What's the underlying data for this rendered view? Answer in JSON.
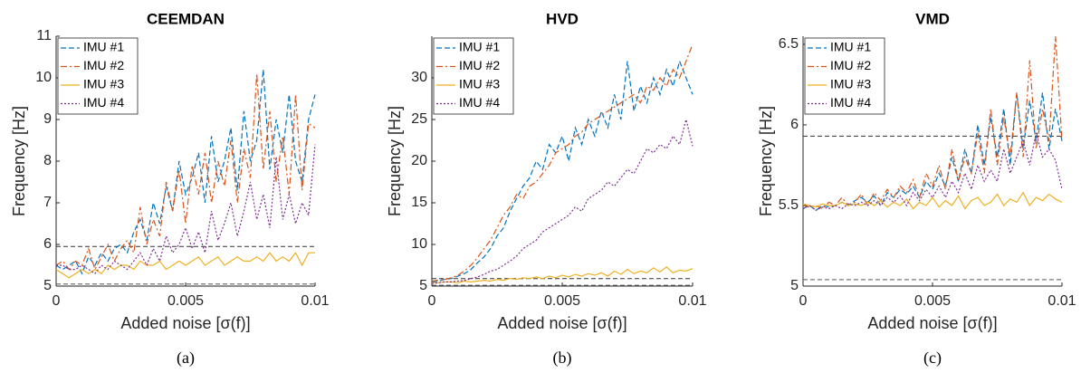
{
  "chart_data": [
    {
      "type": "line",
      "title": "CEEMDAN",
      "caption": "(a)",
      "xlabel": "Added noise [σ(f)]",
      "ylabel": "Frequency [Hz]",
      "xlim": [
        0,
        0.01
      ],
      "xticks": [
        0,
        0.005,
        0.01
      ],
      "ylim": [
        5,
        11
      ],
      "yticks": [
        5,
        6,
        7,
        8,
        9,
        10,
        11
      ],
      "hlines": [
        5.95,
        5.05
      ],
      "x": [
        0,
        0.00025,
        0.0005,
        0.00075,
        0.001,
        0.00125,
        0.0015,
        0.00175,
        0.002,
        0.00225,
        0.0025,
        0.00275,
        0.003,
        0.00325,
        0.0035,
        0.00375,
        0.004,
        0.00425,
        0.0045,
        0.00475,
        0.005,
        0.00525,
        0.0055,
        0.00575,
        0.006,
        0.00625,
        0.0065,
        0.00675,
        0.007,
        0.00725,
        0.0075,
        0.00775,
        0.008,
        0.00825,
        0.0085,
        0.00875,
        0.009,
        0.00925,
        0.0095,
        0.00975,
        0.01
      ],
      "series": [
        {
          "name": "IMU #1",
          "color": "#0072bd",
          "values": [
            5.5,
            5.4,
            5.5,
            5.6,
            5.3,
            5.7,
            5.5,
            5.8,
            5.6,
            5.9,
            6.0,
            5.8,
            6.3,
            6.6,
            6.1,
            7.0,
            6.5,
            7.4,
            6.8,
            8.0,
            7.2,
            7.6,
            8.2,
            7.0,
            8.6,
            7.5,
            8.0,
            8.8,
            7.3,
            9.2,
            8.0,
            8.5,
            10.2,
            7.8,
            9.0,
            8.2,
            9.6,
            8.0,
            7.5,
            9.0,
            9.6
          ]
        },
        {
          "name": "IMU #2",
          "color": "#d95319",
          "values": [
            5.5,
            5.6,
            5.4,
            5.6,
            5.5,
            5.9,
            5.4,
            5.7,
            6.0,
            5.6,
            5.9,
            6.1,
            5.8,
            6.9,
            6.0,
            6.6,
            6.2,
            7.5,
            6.8,
            7.8,
            6.5,
            7.9,
            7.2,
            8.2,
            7.0,
            8.0,
            7.4,
            8.5,
            7.0,
            8.3,
            7.6,
            10.1,
            7.8,
            9.2,
            7.5,
            8.6,
            7.2,
            9.6,
            7.3,
            8.9,
            8.8
          ]
        },
        {
          "name": "IMU #3",
          "color": "#edb120",
          "values": [
            5.4,
            5.3,
            5.2,
            5.3,
            5.4,
            5.3,
            5.4,
            5.3,
            5.5,
            5.4,
            5.5,
            5.5,
            5.4,
            5.6,
            5.5,
            5.5,
            5.6,
            5.4,
            5.5,
            5.6,
            5.5,
            5.6,
            5.7,
            5.5,
            5.6,
            5.7,
            5.5,
            5.6,
            5.7,
            5.6,
            5.6,
            5.7,
            5.6,
            5.8,
            5.6,
            5.7,
            5.6,
            5.8,
            5.5,
            5.8,
            5.8
          ]
        },
        {
          "name": "IMU #4",
          "color": "#7e2f8e",
          "values": [
            5.5,
            5.5,
            5.4,
            5.4,
            5.5,
            5.4,
            5.3,
            5.5,
            5.4,
            5.6,
            5.5,
            5.4,
            5.6,
            5.8,
            5.5,
            5.9,
            5.6,
            6.2,
            5.8,
            6.0,
            6.4,
            5.9,
            6.3,
            5.8,
            6.8,
            6.1,
            6.5,
            7.0,
            6.2,
            6.8,
            7.5,
            6.6,
            7.2,
            6.4,
            8.1,
            6.6,
            7.2,
            6.5,
            7.0,
            6.7,
            8.4
          ]
        }
      ]
    },
    {
      "type": "line",
      "title": "HVD",
      "caption": "(b)",
      "xlabel": "Added noise [σ(f)]",
      "ylabel": "Frequency [Hz]",
      "xlim": [
        0,
        0.01
      ],
      "xticks": [
        0,
        0.005,
        0.01
      ],
      "ylim": [
        5,
        35
      ],
      "yticks": [
        5,
        10,
        15,
        20,
        25,
        30
      ],
      "hlines": [
        5.9,
        5.1
      ],
      "x": [
        0,
        0.00025,
        0.0005,
        0.00075,
        0.001,
        0.00125,
        0.0015,
        0.00175,
        0.002,
        0.00225,
        0.0025,
        0.00275,
        0.003,
        0.00325,
        0.0035,
        0.00375,
        0.004,
        0.00425,
        0.0045,
        0.00475,
        0.005,
        0.00525,
        0.0055,
        0.00575,
        0.006,
        0.00625,
        0.0065,
        0.00675,
        0.007,
        0.00725,
        0.0075,
        0.00775,
        0.008,
        0.00825,
        0.0085,
        0.00875,
        0.009,
        0.00925,
        0.0095,
        0.00975,
        0.01
      ],
      "series": [
        {
          "name": "IMU #1",
          "color": "#0072bd",
          "values": [
            5.5,
            5.6,
            5.8,
            5.9,
            6.2,
            6.5,
            7,
            7.8,
            8.5,
            9.5,
            11,
            12,
            14,
            15.5,
            17,
            18,
            20,
            19,
            22,
            21,
            23,
            20,
            24,
            22,
            25,
            23,
            26,
            24,
            28,
            25,
            32,
            26,
            29,
            27,
            30,
            28,
            31,
            29,
            32,
            30,
            28
          ]
        },
        {
          "name": "IMU #2",
          "color": "#d95319",
          "values": [
            5.6,
            5.7,
            5.8,
            6.0,
            6.3,
            6.8,
            7.5,
            8.4,
            9.5,
            10.5,
            12,
            13.5,
            14.5,
            16,
            15.5,
            17,
            17.5,
            18.5,
            19.5,
            21,
            21.5,
            22,
            23,
            23.5,
            24.5,
            25,
            25.5,
            26,
            26.5,
            27,
            27.5,
            28,
            27,
            29,
            28.5,
            30,
            29,
            31,
            30,
            32,
            34
          ]
        },
        {
          "name": "IMU #3",
          "color": "#edb120",
          "values": [
            5.4,
            5.4,
            5.5,
            5.5,
            5.4,
            5.6,
            5.5,
            5.6,
            5.7,
            5.6,
            5.8,
            5.7,
            5.9,
            5.8,
            6.0,
            5.9,
            6.1,
            5.9,
            6.2,
            6.0,
            6.3,
            6.1,
            6.4,
            6.2,
            6.5,
            6.3,
            6.6,
            6.2,
            6.8,
            6.4,
            7.0,
            6.5,
            6.8,
            6.6,
            7.2,
            6.7,
            7.3,
            6.6,
            6.9,
            6.8,
            7.1
          ]
        },
        {
          "name": "IMU #4",
          "color": "#7e2f8e",
          "values": [
            5.3,
            5.4,
            5.5,
            5.5,
            5.6,
            5.7,
            5.9,
            6.1,
            6.4,
            6.8,
            7.0,
            7.5,
            8,
            8.6,
            9.5,
            10,
            10.5,
            11.5,
            12,
            12.5,
            13,
            13.5,
            14.5,
            14,
            15.5,
            16,
            16.5,
            17.5,
            17,
            18,
            19,
            18.5,
            20,
            21.5,
            21,
            22,
            21.5,
            23,
            22,
            25,
            21.8
          ]
        }
      ]
    },
    {
      "type": "line",
      "title": "VMD",
      "caption": "(c)",
      "xlabel": "Added noise [σ(f)]",
      "ylabel": "Frequency [Hz]",
      "xlim": [
        0,
        0.01
      ],
      "xticks": [
        0,
        0.005,
        0.01
      ],
      "ylim": [
        5,
        6.55
      ],
      "yticks": [
        5,
        5.5,
        6,
        6.5
      ],
      "hlines": [
        5.93,
        5.04
      ],
      "x": [
        0,
        0.00025,
        0.0005,
        0.00075,
        0.001,
        0.00125,
        0.0015,
        0.00175,
        0.002,
        0.00225,
        0.0025,
        0.00275,
        0.003,
        0.00325,
        0.0035,
        0.00375,
        0.004,
        0.00425,
        0.0045,
        0.00475,
        0.005,
        0.00525,
        0.0055,
        0.00575,
        0.006,
        0.00625,
        0.0065,
        0.00675,
        0.007,
        0.00725,
        0.0075,
        0.00775,
        0.008,
        0.00825,
        0.0085,
        0.00875,
        0.009,
        0.00925,
        0.0095,
        0.00975,
        0.01
      ],
      "series": [
        {
          "name": "IMU #1",
          "color": "#0072bd",
          "values": [
            5.48,
            5.5,
            5.47,
            5.5,
            5.49,
            5.5,
            5.52,
            5.5,
            5.53,
            5.55,
            5.52,
            5.56,
            5.5,
            5.58,
            5.55,
            5.6,
            5.57,
            5.62,
            5.55,
            5.65,
            5.6,
            5.7,
            5.62,
            5.8,
            5.65,
            5.85,
            5.7,
            6.0,
            5.75,
            6.05,
            5.8,
            6.1,
            5.75,
            6.2,
            5.85,
            6.15,
            5.9,
            6.2,
            5.85,
            6.1,
            5.9
          ]
        },
        {
          "name": "IMU #2",
          "color": "#d95319",
          "values": [
            5.5,
            5.49,
            5.5,
            5.48,
            5.52,
            5.5,
            5.55,
            5.5,
            5.52,
            5.57,
            5.5,
            5.58,
            5.53,
            5.6,
            5.55,
            5.62,
            5.58,
            5.66,
            5.55,
            5.7,
            5.62,
            5.75,
            5.6,
            5.85,
            5.65,
            5.8,
            5.7,
            5.95,
            5.7,
            6.1,
            5.75,
            6.05,
            5.8,
            6.2,
            5.8,
            6.4,
            5.85,
            6.1,
            5.9,
            6.55,
            5.9
          ]
        },
        {
          "name": "IMU #3",
          "color": "#edb120",
          "values": [
            5.51,
            5.5,
            5.49,
            5.51,
            5.5,
            5.5,
            5.52,
            5.5,
            5.51,
            5.5,
            5.52,
            5.5,
            5.53,
            5.49,
            5.52,
            5.5,
            5.54,
            5.48,
            5.52,
            5.5,
            5.55,
            5.49,
            5.53,
            5.5,
            5.56,
            5.48,
            5.53,
            5.55,
            5.5,
            5.52,
            5.57,
            5.5,
            5.54,
            5.52,
            5.58,
            5.5,
            5.55,
            5.53,
            5.57,
            5.54,
            5.52
          ]
        },
        {
          "name": "IMU #4",
          "color": "#7e2f8e",
          "values": [
            5.48,
            5.5,
            5.47,
            5.49,
            5.48,
            5.5,
            5.48,
            5.51,
            5.5,
            5.52,
            5.5,
            5.53,
            5.5,
            5.55,
            5.52,
            5.56,
            5.5,
            5.58,
            5.53,
            5.6,
            5.55,
            5.62,
            5.55,
            5.65,
            5.58,
            5.7,
            5.6,
            5.75,
            5.65,
            5.72,
            5.65,
            5.85,
            5.7,
            5.8,
            5.9,
            5.75,
            5.95,
            5.8,
            5.85,
            5.78,
            5.6
          ]
        }
      ]
    }
  ]
}
